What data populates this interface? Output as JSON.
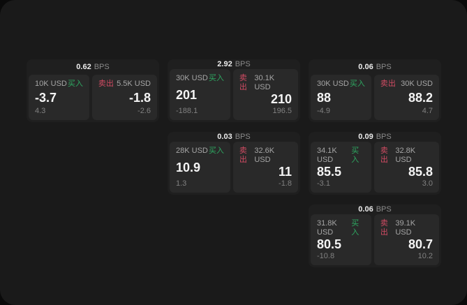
{
  "window": {
    "background_outer": "#0a0a0a",
    "background": "#1a1a1a"
  },
  "labels": {
    "bps_unit": "BPS",
    "buy": "买入",
    "sell": "卖出"
  },
  "colors": {
    "buy_green": "#2ea861",
    "sell_red": "#d14b63",
    "card_bg": "#1f1f1f",
    "panel_bg": "#292929"
  },
  "cards": [
    {
      "spread": "0.62",
      "buy": {
        "amount": "10K USD",
        "price": "-3.7",
        "sub": "4.3"
      },
      "sell": {
        "amount": "5.5K USD",
        "price": "-1.8",
        "sub": "-2.6"
      }
    },
    {
      "spread": "2.92",
      "buy": {
        "amount": "30K USD",
        "price": "201",
        "sub": "-188.1"
      },
      "sell": {
        "amount": "30.1K USD",
        "price": "210",
        "sub": "196.5"
      }
    },
    {
      "spread": "0.06",
      "buy": {
        "amount": "30K USD",
        "price": "88",
        "sub": "-4.9"
      },
      "sell": {
        "amount": "30K USD",
        "price": "88.2",
        "sub": "4.7"
      }
    },
    {
      "spread": "0.03",
      "buy": {
        "amount": "28K USD",
        "price": "10.9",
        "sub": "1.3"
      },
      "sell": {
        "amount": "32.6K USD",
        "price": "11",
        "sub": "-1.8"
      }
    },
    {
      "spread": "0.09",
      "buy": {
        "amount": "34.1K USD",
        "price": "85.5",
        "sub": "-3.1"
      },
      "sell": {
        "amount": "32.8K USD",
        "price": "85.8",
        "sub": "3.0"
      }
    },
    {
      "spread": "0.06",
      "buy": {
        "amount": "31.8K USD",
        "price": "80.5",
        "sub": "-10.8"
      },
      "sell": {
        "amount": "39.1K USD",
        "price": "80.7",
        "sub": "10.2"
      }
    }
  ]
}
